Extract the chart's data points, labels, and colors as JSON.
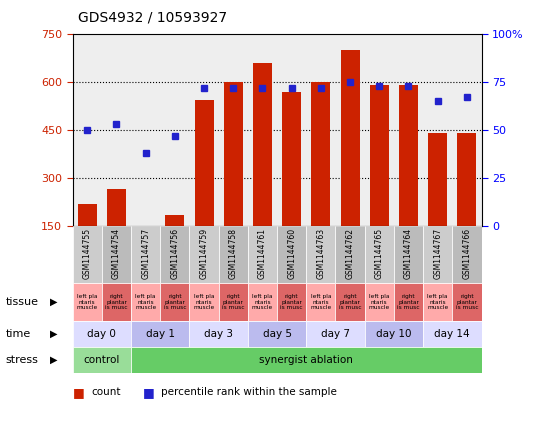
{
  "title": "GDS4932 / 10593927",
  "samples": [
    "GSM1144755",
    "GSM1144754",
    "GSM1144757",
    "GSM1144756",
    "GSM1144759",
    "GSM1144758",
    "GSM1144761",
    "GSM1144760",
    "GSM1144763",
    "GSM1144762",
    "GSM1144765",
    "GSM1144764",
    "GSM1144767",
    "GSM1144766"
  ],
  "counts": [
    220,
    265,
    148,
    185,
    545,
    600,
    660,
    570,
    600,
    700,
    590,
    590,
    440,
    440
  ],
  "percentiles": [
    50,
    53,
    38,
    47,
    72,
    72,
    72,
    72,
    72,
    75,
    73,
    73,
    65,
    67
  ],
  "bar_color": "#cc2200",
  "dot_color": "#2222cc",
  "ylim_left": [
    150,
    750
  ],
  "ylim_right": [
    0,
    100
  ],
  "yticks_left": [
    150,
    300,
    450,
    600,
    750
  ],
  "yticks_right": [
    0,
    25,
    50,
    75,
    100
  ],
  "yticklabels_right": [
    "0",
    "25",
    "50",
    "75",
    "100%"
  ],
  "plot_bg": "#eeeeee",
  "background_color": "#ffffff",
  "stress_groups": [
    {
      "label": "control",
      "start": 0,
      "end": 2,
      "color": "#99dd99"
    },
    {
      "label": "synergist ablation",
      "start": 2,
      "end": 14,
      "color": "#66cc66"
    }
  ],
  "time_groups": [
    {
      "label": "day 0",
      "start": 0,
      "end": 2,
      "color": "#ddddff"
    },
    {
      "label": "day 1",
      "start": 2,
      "end": 4,
      "color": "#bbbbee"
    },
    {
      "label": "day 3",
      "start": 4,
      "end": 6,
      "color": "#ddddff"
    },
    {
      "label": "day 5",
      "start": 6,
      "end": 8,
      "color": "#bbbbee"
    },
    {
      "label": "day 7",
      "start": 8,
      "end": 10,
      "color": "#ddddff"
    },
    {
      "label": "day 10",
      "start": 10,
      "end": 12,
      "color": "#bbbbee"
    },
    {
      "label": "day 14",
      "start": 12,
      "end": 14,
      "color": "#ddddff"
    }
  ],
  "tissue_left_label": "left pla\nntaris\nmuscle",
  "tissue_right_label": "right\nplantar\nis musc",
  "tissue_left_color": "#ffaaaa",
  "tissue_right_color": "#dd6666",
  "xticklabel_bg": "#cccccc",
  "legend_count_color": "#cc2200",
  "legend_pct_color": "#2222cc",
  "row_labels": [
    "stress",
    "time",
    "tissue"
  ]
}
